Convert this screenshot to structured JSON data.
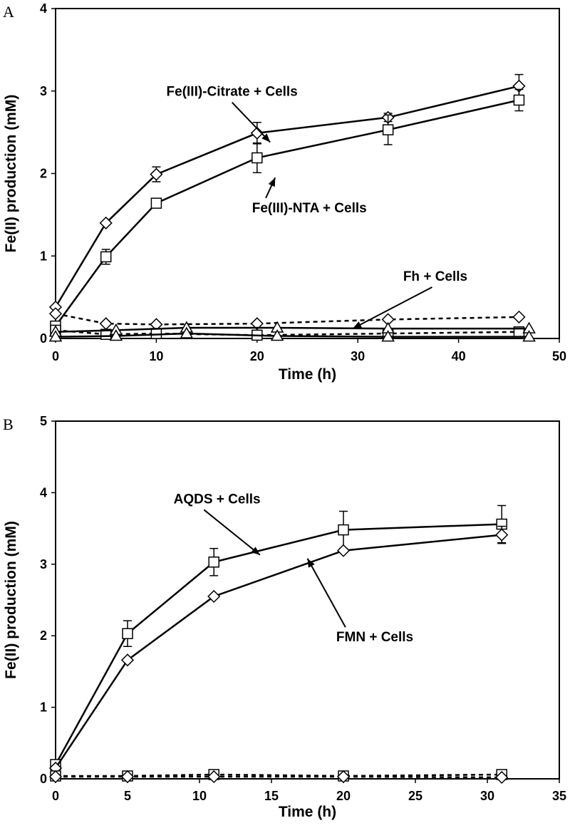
{
  "chart_data": [
    {
      "type": "line",
      "panel_label": "A",
      "xlabel": "Time (h)",
      "ylabel": "Fe(II) production (mM)",
      "xlim": [
        0,
        50
      ],
      "ylim": [
        0,
        4
      ],
      "xticks": [
        0,
        10,
        20,
        30,
        40,
        50
      ],
      "yticks": [
        0,
        1,
        2,
        3,
        4
      ],
      "grid": false,
      "series": [
        {
          "marker": "diamond",
          "dash": false,
          "x": [
            0,
            5,
            10,
            20,
            33,
            46
          ],
          "y": [
            0.38,
            1.4,
            1.99,
            2.49,
            2.68,
            3.06
          ],
          "err": [
            0,
            0,
            0.09,
            0.13,
            0.05,
            0.14
          ]
        },
        {
          "marker": "square",
          "dash": false,
          "x": [
            0,
            5,
            10,
            20,
            33,
            46
          ],
          "y": [
            0.15,
            0.99,
            1.64,
            2.19,
            2.53,
            2.89
          ],
          "err": [
            0,
            0.09,
            0,
            0.18,
            0.18,
            0.13
          ]
        },
        {
          "marker": "diamond",
          "dash": true,
          "x": [
            0,
            5,
            10,
            20,
            33,
            46
          ],
          "y": [
            0.3,
            0.18,
            0.17,
            0.18,
            0.23,
            0.26
          ],
          "err": [
            0,
            0,
            0,
            0,
            0,
            0
          ]
        },
        {
          "marker": "square",
          "dash": true,
          "x": [
            0,
            5,
            10,
            20,
            33,
            46
          ],
          "y": [
            0.1,
            0.05,
            0.06,
            0.04,
            0.06,
            0.08
          ],
          "err": [
            0,
            0,
            0,
            0,
            0,
            0
          ]
        },
        {
          "marker": "triangle",
          "dash": false,
          "x": [
            0,
            6,
            13,
            22,
            33,
            47
          ],
          "y": [
            0.08,
            0.1,
            0.13,
            0.13,
            0.12,
            0.12
          ],
          "err": [
            0,
            0,
            0,
            0,
            0,
            0
          ]
        },
        {
          "marker": "triangle",
          "dash": false,
          "x": [
            0,
            6,
            13,
            22,
            33,
            47
          ],
          "y": [
            0.02,
            0.03,
            0.06,
            0.03,
            0.02,
            0.02
          ],
          "err": [
            0,
            0,
            0,
            0,
            0,
            0
          ]
        }
      ],
      "annotations": [
        {
          "text": "Fe(III)-Citrate + Cells",
          "x": 11,
          "y": 2.94,
          "arrow_to": [
            21.3,
            2.38
          ]
        },
        {
          "text": "Fe(III)-NTA + Cells",
          "x": 19.5,
          "y": 1.53,
          "arrow_to": [
            21.8,
            1.95
          ]
        },
        {
          "text": "Fh + Cells",
          "x": 34.5,
          "y": 0.7,
          "arrow_to": [
            29.5,
            0.12
          ]
        }
      ]
    },
    {
      "type": "line",
      "panel_label": "B",
      "xlabel": "Time (h)",
      "ylabel": "Fe(II) production (mM)",
      "xlim": [
        0,
        35
      ],
      "ylim": [
        0,
        5
      ],
      "xticks": [
        0,
        5,
        10,
        15,
        20,
        25,
        30,
        35
      ],
      "yticks": [
        0,
        1,
        2,
        3,
        4,
        5
      ],
      "grid": false,
      "series": [
        {
          "marker": "square",
          "dash": false,
          "x": [
            0,
            5,
            11,
            20,
            31
          ],
          "y": [
            0.2,
            2.03,
            3.03,
            3.48,
            3.56
          ],
          "err": [
            0,
            0.18,
            0.19,
            0.26,
            0.26
          ]
        },
        {
          "marker": "diamond",
          "dash": false,
          "x": [
            0,
            5,
            11,
            20,
            31
          ],
          "y": [
            0.15,
            1.66,
            2.55,
            3.19,
            3.41
          ],
          "err": [
            0,
            0,
            0,
            0,
            0.12
          ]
        },
        {
          "marker": "square",
          "dash": true,
          "x": [
            0,
            5,
            11,
            20,
            31
          ],
          "y": [
            0.04,
            0.04,
            0.06,
            0.04,
            0.06
          ],
          "err": [
            0,
            0,
            0,
            0,
            0
          ]
        },
        {
          "marker": "diamond",
          "dash": true,
          "x": [
            0,
            5,
            11,
            20,
            31
          ],
          "y": [
            0.03,
            0.03,
            0.03,
            0.03,
            0.02
          ],
          "err": [
            0,
            0,
            0,
            0,
            0
          ]
        }
      ],
      "annotations": [
        {
          "text": "AQDS + Cells",
          "x": 8.2,
          "y": 3.85,
          "arrow_to": [
            14.2,
            3.13
          ]
        },
        {
          "text": "FMN + Cells",
          "x": 19.5,
          "y": 1.92,
          "arrow_to": [
            17.5,
            3.08
          ]
        }
      ]
    }
  ]
}
